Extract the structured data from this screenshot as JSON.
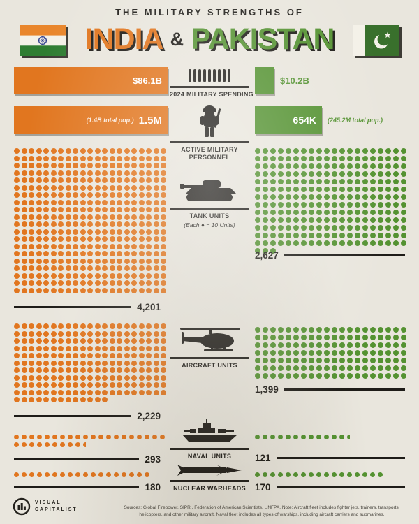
{
  "colors": {
    "india": "#e1761f",
    "pakistan": "#549231",
    "ink": "#1e1c18",
    "background": "#e9e6dd"
  },
  "header": {
    "kicker": "THE MILITARY STRENGTHS OF",
    "india": "INDIA",
    "ampersand": "&",
    "pakistan": "PAKISTAN"
  },
  "spending": {
    "label": "2024 MILITARY SPENDING",
    "india_value": "$86.1B",
    "pakistan_value": "$10.2B"
  },
  "personnel": {
    "label": "ACTIVE MILITARY PERSONNEL",
    "india_note": "(1.4B total pop.)",
    "india_value": "1.5M",
    "pakistan_value": "654K",
    "pakistan_note": "(245.2M total pop.)"
  },
  "tanks": {
    "label": "TANK UNITS",
    "sublabel": "(Each ● = 10 Units)",
    "india_value": "4,201",
    "pakistan_value": "2,627"
  },
  "aircraft": {
    "label": "AIRCRAFT UNITS",
    "india_value": "2,229",
    "pakistan_value": "1,399"
  },
  "naval": {
    "label": "NAVAL UNITS",
    "india_value": "293",
    "pakistan_value": "121"
  },
  "nuclear": {
    "label": "NUCLEAR WARHEADS",
    "india_value": "180",
    "pakistan_value": "170"
  },
  "grids": {
    "tanks_india": {
      "count": 420,
      "cols": 21,
      "dot": 8,
      "gap": 2.5,
      "color": "#e1761f",
      "partial": false
    },
    "tanks_pakistan": {
      "count": 263,
      "cols": 20,
      "dot": 8,
      "gap": 3,
      "color": "#549231",
      "partial": false
    },
    "aircraft_india": {
      "count": 223,
      "cols": 21,
      "dot": 8,
      "gap": 2.5,
      "color": "#e1761f",
      "partial": false
    },
    "aircraft_pakistan": {
      "count": 140,
      "cols": 20,
      "dot": 8,
      "gap": 3,
      "color": "#549231",
      "partial": false
    },
    "naval_india": {
      "count": 29,
      "cols": 20,
      "dot": 7,
      "gap": 4,
      "color": "#e1761f",
      "partial": true
    },
    "naval_pakistan": {
      "count": 12,
      "cols": 20,
      "dot": 7,
      "gap": 4,
      "color": "#549231",
      "partial": true
    },
    "nuclear_india": {
      "count": 18,
      "cols": 18,
      "dot": 7,
      "gap": 4,
      "color": "#e1761f",
      "partial": false
    },
    "nuclear_pakistan": {
      "count": 17,
      "cols": 17,
      "dot": 7,
      "gap": 4,
      "color": "#549231",
      "partial": false
    }
  },
  "footer": {
    "brand_line1": "VISUAL",
    "brand_line2": "CAPITALIST",
    "sources": "Sources: Global Firepower, SIPRI, Federation of American Scientists, UNFPA. Note: Aircraft fleet includes fighter jets, trainers, transports, helicopters, and other military aircraft. Naval fleet includes all types of warships, including aircraft carriers and submarines."
  },
  "chart_data": {
    "type": "pictogram",
    "title": "The Military Strengths of India & Pakistan",
    "unit_per_dot": 10,
    "categories": [
      "2024 Military Spending ($B)",
      "Active Military Personnel",
      "Tank Units",
      "Aircraft Units",
      "Naval Units",
      "Nuclear Warheads"
    ],
    "series": [
      {
        "name": "India",
        "color": "#e1761f",
        "total_population": "1.4B",
        "values": [
          86.1,
          1500000,
          4201,
          2229,
          293,
          180
        ]
      },
      {
        "name": "Pakistan",
        "color": "#549231",
        "total_population": "245.2M",
        "values": [
          10.2,
          654000,
          2627,
          1399,
          121,
          170
        ]
      }
    ]
  }
}
